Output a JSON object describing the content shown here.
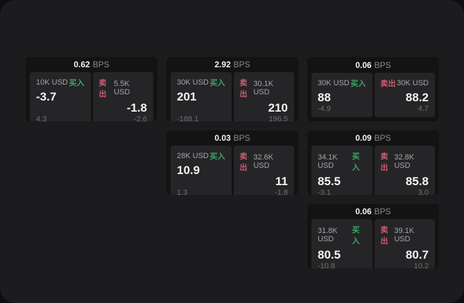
{
  "labels": {
    "buy": "买入",
    "sell": "卖出",
    "bps_unit": "BPS"
  },
  "colors": {
    "buy_green": "#3da566",
    "sell_red": "#cf5a6f",
    "container_bg": "#1c1c1e",
    "card_bg": "#131314",
    "panel_bg": "#252527"
  },
  "cards": [
    {
      "bps_value": "0.62",
      "buy": {
        "amount": "10K USD",
        "price": "-3.7",
        "change": "4.3"
      },
      "sell": {
        "amount": "5.5K USD",
        "price": "-1.8",
        "change": "-2.6"
      }
    },
    {
      "bps_value": "2.92",
      "buy": {
        "amount": "30K USD",
        "price": "201",
        "change": "-188.1"
      },
      "sell": {
        "amount": "30.1K USD",
        "price": "210",
        "change": "196.5"
      }
    },
    {
      "bps_value": "0.06",
      "buy": {
        "amount": "30K USD",
        "price": "88",
        "change": "-4.9"
      },
      "sell": {
        "amount": "30K USD",
        "price": "88.2",
        "change": "4.7"
      }
    },
    {
      "bps_value": "0.03",
      "buy": {
        "amount": "28K USD",
        "price": "10.9",
        "change": "1.3"
      },
      "sell": {
        "amount": "32.6K USD",
        "price": "11",
        "change": "-1.8"
      }
    },
    {
      "bps_value": "0.09",
      "buy": {
        "amount": "34.1K USD",
        "price": "85.5",
        "change": "-3.1"
      },
      "sell": {
        "amount": "32.8K USD",
        "price": "85.8",
        "change": "3.0"
      }
    },
    {
      "bps_value": "0.06",
      "buy": {
        "amount": "31.8K USD",
        "price": "80.5",
        "change": "-10.8"
      },
      "sell": {
        "amount": "39.1K USD",
        "price": "80.7",
        "change": "10.2"
      }
    }
  ]
}
